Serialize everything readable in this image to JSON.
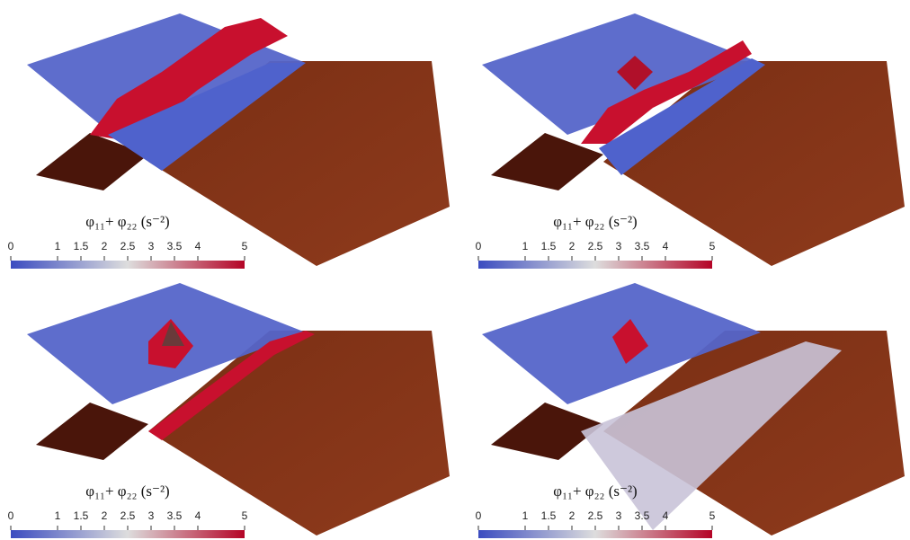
{
  "panels": [
    {
      "colorbar": {
        "title": "φ₁₁+ φ₂₂ (s⁻²)",
        "lim": [
          0,
          5
        ],
        "ticks": [
          0,
          1,
          1.5,
          2,
          2.5,
          3,
          3.5,
          4,
          5
        ]
      }
    },
    {
      "colorbar": {
        "title": "φ₁₁+ φ₂₂ (s⁻²)",
        "lim": [
          0,
          5
        ],
        "ticks": [
          0,
          1,
          1.5,
          2,
          2.5,
          3,
          3.5,
          4,
          5
        ]
      }
    },
    {
      "colorbar": {
        "title": "φ₁₁+ φ₂₂ (s⁻²)",
        "lim": [
          0,
          5
        ],
        "ticks": [
          0,
          1,
          1.5,
          2,
          2.5,
          3,
          3.5,
          4,
          5
        ]
      }
    },
    {
      "colorbar": {
        "title": "φ₁₁+ φ₂₂ (s⁻²)",
        "lim": [
          0,
          5
        ],
        "ticks": [
          0,
          1,
          1.5,
          2,
          2.5,
          3,
          3.5,
          4,
          5
        ]
      }
    }
  ]
}
